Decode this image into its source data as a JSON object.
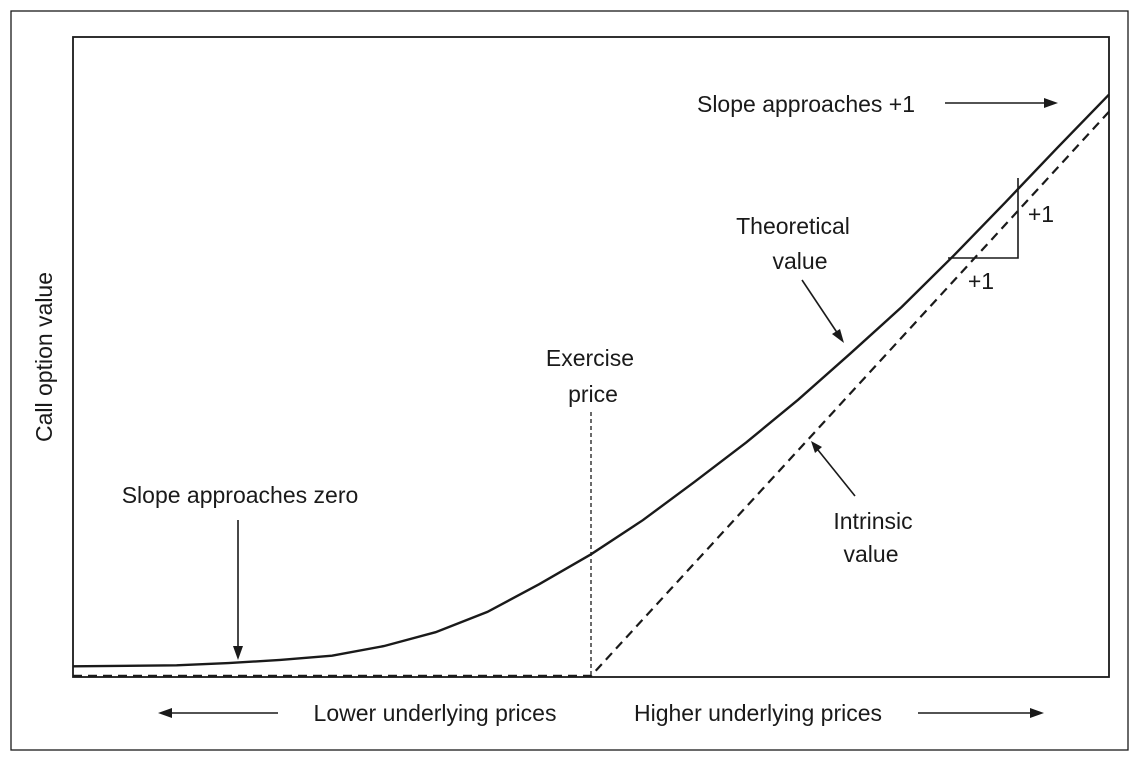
{
  "chart_data": {
    "type": "line",
    "title": "",
    "ylabel": "Call option value",
    "x_annotation_lower": "Lower underlying prices",
    "x_annotation_higher": "Higher underlying prices",
    "exercise_label_line1": "Exercise",
    "exercise_label_line2": "price",
    "annotations": {
      "slope_zero": "Slope approaches zero",
      "slope_one": "Slope approaches +1",
      "theoretical_line1": "Theoretical",
      "theoretical_line2": "value",
      "intrinsic_line1": "Intrinsic",
      "intrinsic_line2": "value",
      "rise_label": "+1",
      "run_label": "+1"
    },
    "exercise_price": 50,
    "xlim": [
      0,
      100
    ],
    "ylim": [
      0,
      60
    ],
    "axis_ticks_shown": false,
    "series": [
      {
        "name": "Theoretical value",
        "style": "solid",
        "x": [
          0,
          10,
          15,
          20,
          25,
          30,
          35,
          40,
          45,
          50,
          55,
          60,
          65,
          70,
          75,
          80,
          85,
          90,
          95,
          100
        ],
        "y": [
          1.0,
          1.1,
          1.3,
          1.6,
          2.0,
          2.9,
          4.2,
          6.1,
          8.7,
          11.5,
          14.7,
          18.3,
          22.0,
          26.0,
          30.3,
          34.7,
          39.5,
          44.5,
          49.6,
          54.6
        ]
      },
      {
        "name": "Intrinsic value",
        "style": "dashed",
        "x": [
          0,
          50,
          100
        ],
        "y": [
          0.1,
          0.1,
          53.0
        ]
      }
    ]
  }
}
